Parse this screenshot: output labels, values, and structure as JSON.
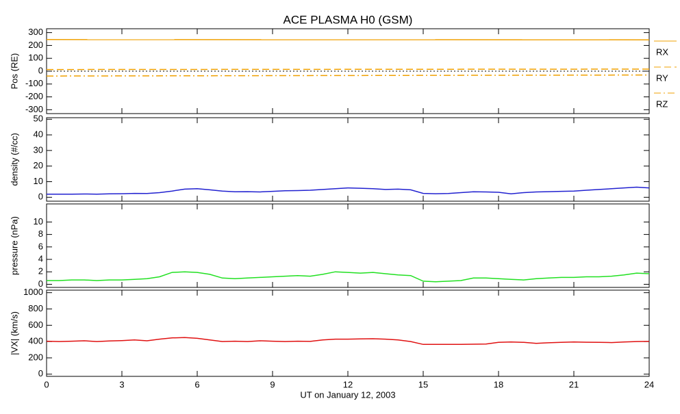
{
  "chart_data": [
    {
      "type": "line",
      "title": "ACE PLASMA H0 (GSM)",
      "ylabel": "Pos (RE)",
      "x": [
        0,
        24
      ],
      "xlim": [
        0,
        24
      ],
      "ylim": [
        -330,
        330
      ],
      "yticks": [
        -300,
        -200,
        -100,
        0,
        100,
        200,
        300
      ],
      "series": [
        {
          "name": "RX",
          "color": "#f0a000",
          "style": "solid",
          "values": [
            246,
            244
          ]
        },
        {
          "name": "RY",
          "color": "#f0a000",
          "style": "dashed",
          "values": [
            13,
            16
          ]
        },
        {
          "name": "RZ",
          "color": "#f0a000",
          "style": "dashdot",
          "values": [
            -38,
            -30
          ]
        }
      ]
    },
    {
      "type": "line",
      "ylabel": "density (#/cc)",
      "x": [
        0,
        0.5,
        1,
        1.5,
        2,
        2.5,
        3,
        3.5,
        4,
        4.5,
        5,
        5.5,
        6,
        6.5,
        7,
        7.5,
        8,
        8.5,
        9,
        9.5,
        10,
        10.5,
        11,
        11.5,
        12,
        12.5,
        13,
        13.5,
        14,
        14.5,
        15,
        15.5,
        16,
        16.5,
        17,
        17.5,
        18,
        18.5,
        19,
        19.5,
        20,
        20.5,
        21,
        21.5,
        22,
        22.5,
        23,
        23.5,
        24
      ],
      "xlim": [
        0,
        24
      ],
      "ylim": [
        -2.5,
        51
      ],
      "yticks": [
        0,
        10,
        20,
        30,
        40,
        50
      ],
      "series": [
        {
          "color": "#2020d0",
          "values": [
            2,
            2,
            2,
            2.1,
            2,
            2.2,
            2.3,
            2.5,
            2.4,
            3,
            4,
            5.2,
            5.5,
            4.8,
            4,
            3.5,
            3.6,
            3.4,
            3.8,
            4.2,
            4.3,
            4.5,
            5,
            5.5,
            6,
            5.8,
            5.5,
            5,
            5.2,
            4.8,
            2.5,
            2.3,
            2.4,
            3,
            3.5,
            3.4,
            3.2,
            2.2,
            3,
            3.4,
            3.6,
            3.8,
            4,
            4.5,
            5,
            5.5,
            6,
            6.5,
            6
          ]
        }
      ]
    },
    {
      "type": "line",
      "ylabel": "pressure (nPa)",
      "x": [
        0,
        0.5,
        1,
        1.5,
        2,
        2.5,
        3,
        3.5,
        4,
        4.5,
        5,
        5.5,
        6,
        6.5,
        7,
        7.5,
        8,
        8.5,
        9,
        9.5,
        10,
        10.5,
        11,
        11.5,
        12,
        12.5,
        13,
        13.5,
        14,
        14.5,
        15,
        15.5,
        16,
        16.5,
        17,
        17.5,
        18,
        18.5,
        19,
        19.5,
        20,
        20.5,
        21,
        21.5,
        22,
        22.5,
        23,
        23.5,
        24
      ],
      "xlim": [
        0,
        24
      ],
      "ylim": [
        -0.5,
        12.9
      ],
      "yticks": [
        0,
        2,
        4,
        6,
        8,
        10
      ],
      "series": [
        {
          "color": "#20e020",
          "values": [
            0.6,
            0.6,
            0.7,
            0.7,
            0.6,
            0.7,
            0.7,
            0.8,
            0.9,
            1.2,
            1.9,
            2,
            1.9,
            1.6,
            1,
            0.9,
            1,
            1.1,
            1.2,
            1.3,
            1.4,
            1.3,
            1.6,
            2,
            1.9,
            1.8,
            1.9,
            1.7,
            1.5,
            1.4,
            0.5,
            0.4,
            0.5,
            0.6,
            1,
            1,
            0.9,
            0.8,
            0.7,
            0.9,
            1,
            1.1,
            1.1,
            1.2,
            1.2,
            1.3,
            1.5,
            1.8,
            1.7
          ]
        }
      ]
    },
    {
      "type": "line",
      "ylabel": "|VX| (km/s)",
      "xlabel": "UT on January 12, 2003",
      "x": [
        0,
        0.5,
        1,
        1.5,
        2,
        2.5,
        3,
        3.5,
        4,
        4.5,
        5,
        5.5,
        6,
        6.5,
        7,
        7.5,
        8,
        8.5,
        9,
        9.5,
        10,
        10.5,
        11,
        11.5,
        12,
        12.5,
        13,
        13.5,
        14,
        14.5,
        15,
        15.5,
        16,
        16.5,
        17,
        17.5,
        18,
        18.5,
        19,
        19.5,
        20,
        20.5,
        21,
        21.5,
        22,
        22.5,
        23,
        23.5,
        24
      ],
      "xlim": [
        0,
        24
      ],
      "xticks": [
        0,
        3,
        6,
        9,
        12,
        15,
        18,
        21,
        24
      ],
      "ylim": [
        -27,
        1031
      ],
      "yticks": [
        0,
        200,
        400,
        600,
        800,
        1000
      ],
      "series": [
        {
          "color": "#e01010",
          "values": [
            405,
            400,
            405,
            410,
            400,
            408,
            412,
            420,
            410,
            430,
            445,
            450,
            440,
            420,
            400,
            405,
            400,
            410,
            405,
            400,
            405,
            402,
            420,
            430,
            430,
            432,
            435,
            430,
            420,
            400,
            365,
            365,
            365,
            365,
            368,
            370,
            390,
            395,
            390,
            378,
            385,
            390,
            395,
            392,
            390,
            388,
            395,
            400,
            402
          ]
        }
      ]
    }
  ]
}
